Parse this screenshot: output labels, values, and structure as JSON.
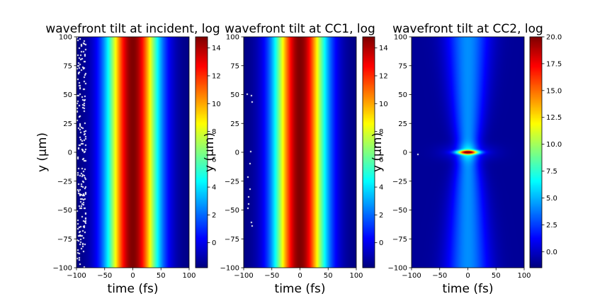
{
  "chart_data": [
    {
      "type": "heatmap",
      "title": "wavefront tilt at incident, log",
      "xlabel": "time (fs)",
      "ylabel": "y (μm)",
      "xlim": [
        -100,
        100
      ],
      "ylim": [
        -100,
        100
      ],
      "xticks": [
        "−100",
        "−50",
        "0",
        "50",
        "100"
      ],
      "yticks": [
        "100",
        "75",
        "50",
        "25",
        "0",
        "−25",
        "−50",
        "−75",
        "−100"
      ],
      "colormap": "jet",
      "colorbar": {
        "min": -1.8,
        "max": 14.8,
        "ticks": [
          "0",
          "2",
          "4",
          "6",
          "8",
          "10",
          "12",
          "14"
        ]
      },
      "field": {
        "shape": "uniform_vertical_band",
        "center_fs": 0,
        "half_width_fs": 55,
        "peak": 14.8,
        "floor": -1.8
      },
      "missing_values": "scattered white (NaN) pixels along left edge, x ≈ −100 to −85 fs"
    },
    {
      "type": "heatmap",
      "title": "wavefront tilt at CC1, log",
      "xlabel": "time (fs)",
      "ylabel": "y (μm)",
      "xlim": [
        -100,
        100
      ],
      "ylim": [
        -100,
        100
      ],
      "xticks": [
        "−100",
        "−50",
        "0",
        "50",
        "100"
      ],
      "yticks": [
        "100",
        "75",
        "50",
        "25",
        "0",
        "−25",
        "−50",
        "−75",
        "−100"
      ],
      "colormap": "jet",
      "colorbar": {
        "min": -1.8,
        "max": 14.8,
        "ticks": [
          "0",
          "2",
          "4",
          "6",
          "8",
          "10",
          "12",
          "14"
        ]
      },
      "field": {
        "shape": "uniform_vertical_band",
        "center_fs": 0,
        "half_width_fs": 55,
        "peak": 14.8,
        "floor": -1.8
      },
      "missing_values": "a few white (NaN) pixels near x ≈ −95 to −85 fs"
    },
    {
      "type": "heatmap",
      "title": "wavefront tilt at CC2, log",
      "xlabel": "time (fs)",
      "ylabel": "y (μm)",
      "xlim": [
        -100,
        100
      ],
      "ylim": [
        -100,
        100
      ],
      "xticks": [
        "−100",
        "−50",
        "0",
        "50",
        "100"
      ],
      "yticks": [
        "100",
        "75",
        "50",
        "25",
        "0",
        "−25",
        "−50",
        "−75",
        "−100"
      ],
      "colormap": "jet",
      "colorbar": {
        "min": -1.5,
        "max": 20.0,
        "ticks": [
          "0.0",
          "2.5",
          "5.0",
          "7.5",
          "10.0",
          "12.5",
          "15.0",
          "17.5",
          "20.0"
        ]
      },
      "field": {
        "shape": "focus_at_y0",
        "center_fs": 0,
        "peak": 20.0,
        "floor": -1.5
      },
      "missing_values": "single white pixel near x ≈ −90 fs, y ≈ −1 μm"
    }
  ]
}
